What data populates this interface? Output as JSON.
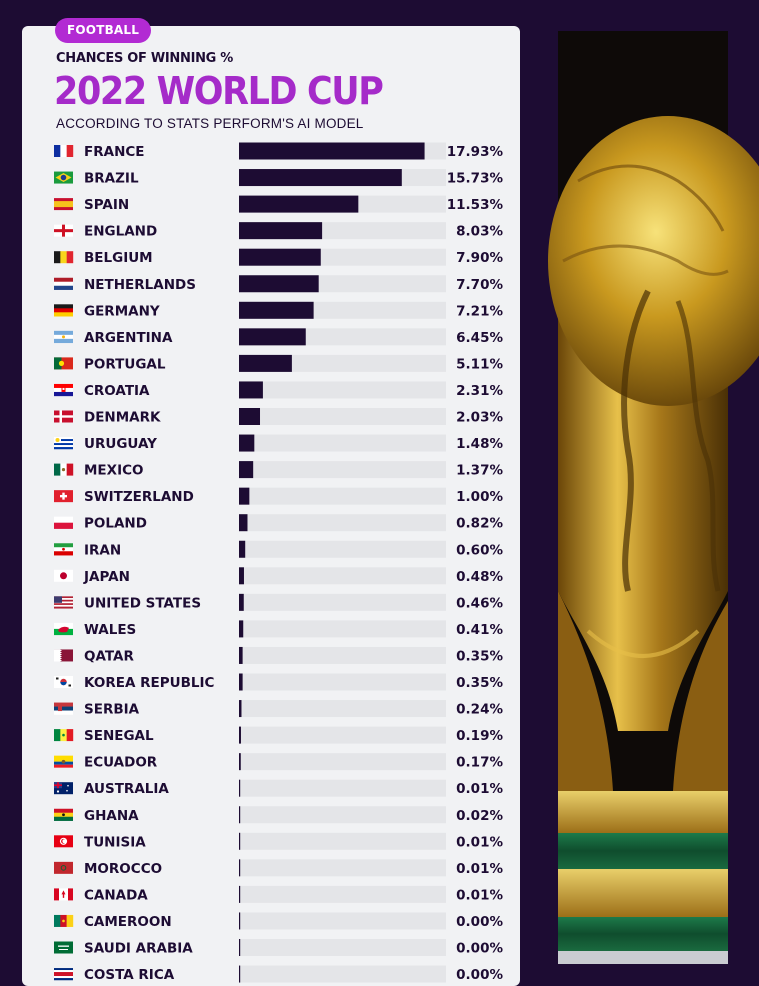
{
  "header": {
    "badge": "FOOTBALL",
    "kicker": "CHANCES OF WINNING %",
    "title": "2022 WORLD CUP",
    "subtitle": "ACCORDING TO STATS PERFORM'S AI MODEL"
  },
  "colors": {
    "background": "#1d0c33",
    "card": "#f1f2f4",
    "accent": "#a52bc9",
    "bar": "#1d0c33",
    "track": "#e4e5e8"
  },
  "chart_data": {
    "type": "bar",
    "orientation": "horizontal",
    "title": "2022 WORLD CUP",
    "subtitle": "ACCORDING TO STATS PERFORM'S AI MODEL",
    "ylabel": "CHANCES OF WINNING %",
    "xlim": [
      0,
      20
    ],
    "categories": [
      "FRANCE",
      "BRAZIL",
      "SPAIN",
      "ENGLAND",
      "BELGIUM",
      "NETHERLANDS",
      "GERMANY",
      "ARGENTINA",
      "PORTUGAL",
      "CROATIA",
      "DENMARK",
      "URUGUAY",
      "MEXICO",
      "SWITZERLAND",
      "POLAND",
      "IRAN",
      "JAPAN",
      "UNITED STATES",
      "WALES",
      "QATAR",
      "KOREA REPUBLIC",
      "SERBIA",
      "SENEGAL",
      "ECUADOR",
      "AUSTRALIA",
      "GHANA",
      "TUNISIA",
      "MOROCCO",
      "CANADA",
      "CAMEROON",
      "SAUDI ARABIA",
      "COSTA RICA"
    ],
    "values": [
      17.93,
      15.73,
      11.53,
      8.03,
      7.9,
      7.7,
      7.21,
      6.45,
      5.11,
      2.31,
      2.03,
      1.48,
      1.37,
      1.0,
      0.82,
      0.6,
      0.48,
      0.46,
      0.41,
      0.35,
      0.35,
      0.24,
      0.19,
      0.17,
      0.01,
      0.02,
      0.01,
      0.01,
      0.01,
      0.0,
      0.0,
      0.0
    ],
    "labels": [
      "17.93%",
      "15.73%",
      "11.53%",
      "8.03%",
      "7.90%",
      "7.70%",
      "7.21%",
      "6.45%",
      "5.11%",
      "2.31%",
      "2.03%",
      "1.48%",
      "1.37%",
      "1.00%",
      "0.82%",
      "0.60%",
      "0.48%",
      "0.46%",
      "0.41%",
      "0.35%",
      "0.35%",
      "0.24%",
      "0.19%",
      "0.17%",
      "0.01%",
      "0.02%",
      "0.01%",
      "0.01%",
      "0.01%",
      "0.00%",
      "0.00%",
      "0.00%"
    ],
    "flag_icons": [
      "france-flag-icon",
      "brazil-flag-icon",
      "spain-flag-icon",
      "england-flag-icon",
      "belgium-flag-icon",
      "netherlands-flag-icon",
      "germany-flag-icon",
      "argentina-flag-icon",
      "portugal-flag-icon",
      "croatia-flag-icon",
      "denmark-flag-icon",
      "uruguay-flag-icon",
      "mexico-flag-icon",
      "switzerland-flag-icon",
      "poland-flag-icon",
      "iran-flag-icon",
      "japan-flag-icon",
      "usa-flag-icon",
      "wales-flag-icon",
      "qatar-flag-icon",
      "korea-flag-icon",
      "serbia-flag-icon",
      "senegal-flag-icon",
      "ecuador-flag-icon",
      "australia-flag-icon",
      "ghana-flag-icon",
      "tunisia-flag-icon",
      "morocco-flag-icon",
      "canada-flag-icon",
      "cameroon-flag-icon",
      "saudi-arabia-flag-icon",
      "costa-rica-flag-icon"
    ]
  },
  "photo": {
    "icon": "world-cup-trophy-icon"
  }
}
